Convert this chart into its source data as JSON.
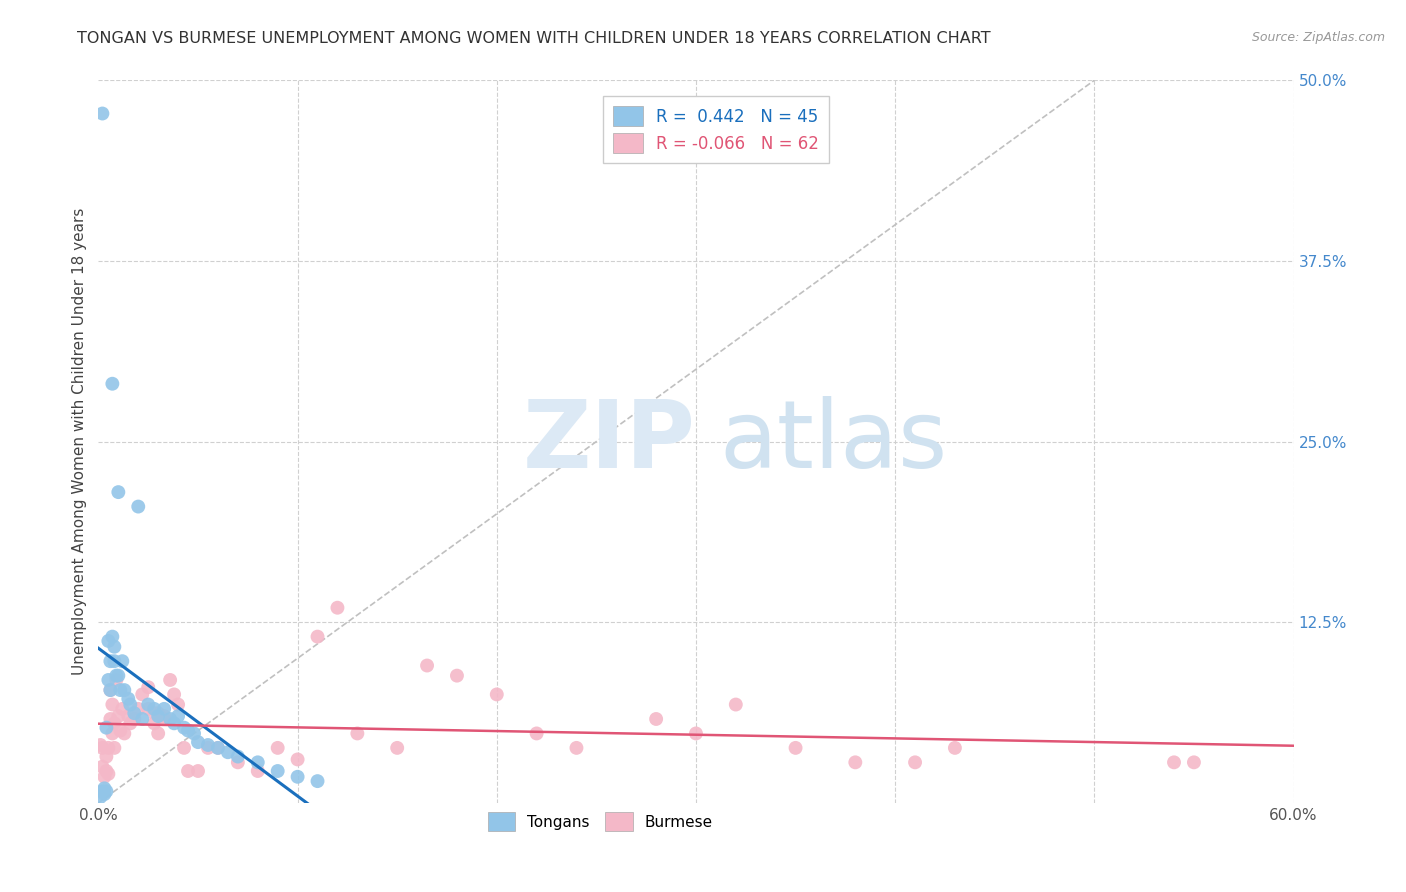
{
  "title": "TONGAN VS BURMESE UNEMPLOYMENT AMONG WOMEN WITH CHILDREN UNDER 18 YEARS CORRELATION CHART",
  "source": "Source: ZipAtlas.com",
  "ylabel": "Unemployment Among Women with Children Under 18 years",
  "xlim": [
    0.0,
    0.6
  ],
  "ylim": [
    0.0,
    0.5
  ],
  "legend_tongans_R": "0.442",
  "legend_tongans_N": "45",
  "legend_burmese_R": "-0.066",
  "legend_burmese_N": "62",
  "tongans_color": "#92c5e8",
  "burmese_color": "#f4b8c8",
  "diagonal_color": "#c0c0c0",
  "tonga_line_color": "#1a6fbd",
  "burmese_line_color": "#e05575",
  "tongans_x": [
    0.001,
    0.002,
    0.002,
    0.003,
    0.003,
    0.004,
    0.004,
    0.005,
    0.005,
    0.006,
    0.006,
    0.007,
    0.007,
    0.008,
    0.008,
    0.009,
    0.01,
    0.01,
    0.011,
    0.012,
    0.013,
    0.015,
    0.016,
    0.018,
    0.02,
    0.022,
    0.025,
    0.028,
    0.03,
    0.033,
    0.036,
    0.038,
    0.04,
    0.043,
    0.045,
    0.048,
    0.05,
    0.055,
    0.06,
    0.065,
    0.07,
    0.08,
    0.09,
    0.1,
    0.11
  ],
  "tongans_y": [
    0.004,
    0.477,
    0.008,
    0.01,
    0.006,
    0.052,
    0.008,
    0.085,
    0.112,
    0.098,
    0.078,
    0.29,
    0.115,
    0.108,
    0.098,
    0.088,
    0.088,
    0.215,
    0.078,
    0.098,
    0.078,
    0.072,
    0.068,
    0.062,
    0.205,
    0.058,
    0.068,
    0.065,
    0.06,
    0.065,
    0.058,
    0.055,
    0.06,
    0.052,
    0.05,
    0.048,
    0.042,
    0.04,
    0.038,
    0.035,
    0.032,
    0.028,
    0.022,
    0.018,
    0.015
  ],
  "burmese_x": [
    0.001,
    0.002,
    0.002,
    0.003,
    0.004,
    0.004,
    0.005,
    0.005,
    0.006,
    0.006,
    0.007,
    0.007,
    0.008,
    0.008,
    0.009,
    0.01,
    0.011,
    0.012,
    0.013,
    0.015,
    0.016,
    0.018,
    0.02,
    0.022,
    0.025,
    0.025,
    0.028,
    0.028,
    0.03,
    0.03,
    0.033,
    0.033,
    0.036,
    0.038,
    0.04,
    0.043,
    0.045,
    0.05,
    0.055,
    0.06,
    0.07,
    0.08,
    0.09,
    0.1,
    0.11,
    0.12,
    0.13,
    0.15,
    0.165,
    0.18,
    0.2,
    0.22,
    0.24,
    0.28,
    0.3,
    0.32,
    0.35,
    0.38,
    0.41,
    0.43,
    0.54,
    0.55
  ],
  "burmese_y": [
    0.04,
    0.025,
    0.038,
    0.018,
    0.032,
    0.022,
    0.02,
    0.038,
    0.058,
    0.078,
    0.048,
    0.068,
    0.038,
    0.055,
    0.085,
    0.06,
    0.05,
    0.065,
    0.048,
    0.06,
    0.055,
    0.058,
    0.065,
    0.075,
    0.08,
    0.065,
    0.062,
    0.055,
    0.062,
    0.048,
    0.058,
    0.06,
    0.085,
    0.075,
    0.068,
    0.038,
    0.022,
    0.022,
    0.038,
    0.038,
    0.028,
    0.022,
    0.038,
    0.03,
    0.115,
    0.135,
    0.048,
    0.038,
    0.095,
    0.088,
    0.075,
    0.048,
    0.038,
    0.058,
    0.048,
    0.068,
    0.038,
    0.028,
    0.028,
    0.038,
    0.028,
    0.028
  ]
}
